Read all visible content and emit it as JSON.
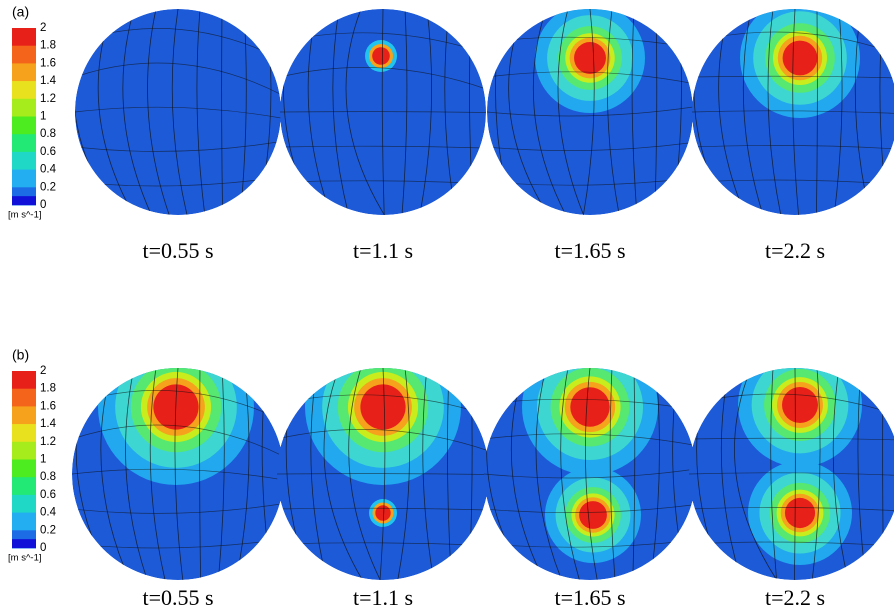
{
  "panels": [
    {
      "label": "(a)",
      "colorbar": {
        "ticks": [
          "2",
          "1.8",
          "1.6",
          "1.4",
          "1.2",
          "1",
          "0.8",
          "0.6",
          "0.4",
          "0.2",
          "0"
        ],
        "unit": "[m s^-1]"
      },
      "captions": [
        "t=0.55 s",
        "t=1.1 s",
        "t=1.65 s",
        "t=2.2 s"
      ]
    },
    {
      "label": "(b)",
      "colorbar": {
        "ticks": [
          "2",
          "1.8",
          "1.6",
          "1.4",
          "1.2",
          "1",
          "0.8",
          "0.6",
          "0.4",
          "0.2",
          "0"
        ],
        "unit": "[m s^-1]"
      },
      "captions": [
        "t=0.55 s",
        "t=1.1 s",
        "t=1.65 s",
        "t=2.2 s"
      ]
    }
  ]
}
